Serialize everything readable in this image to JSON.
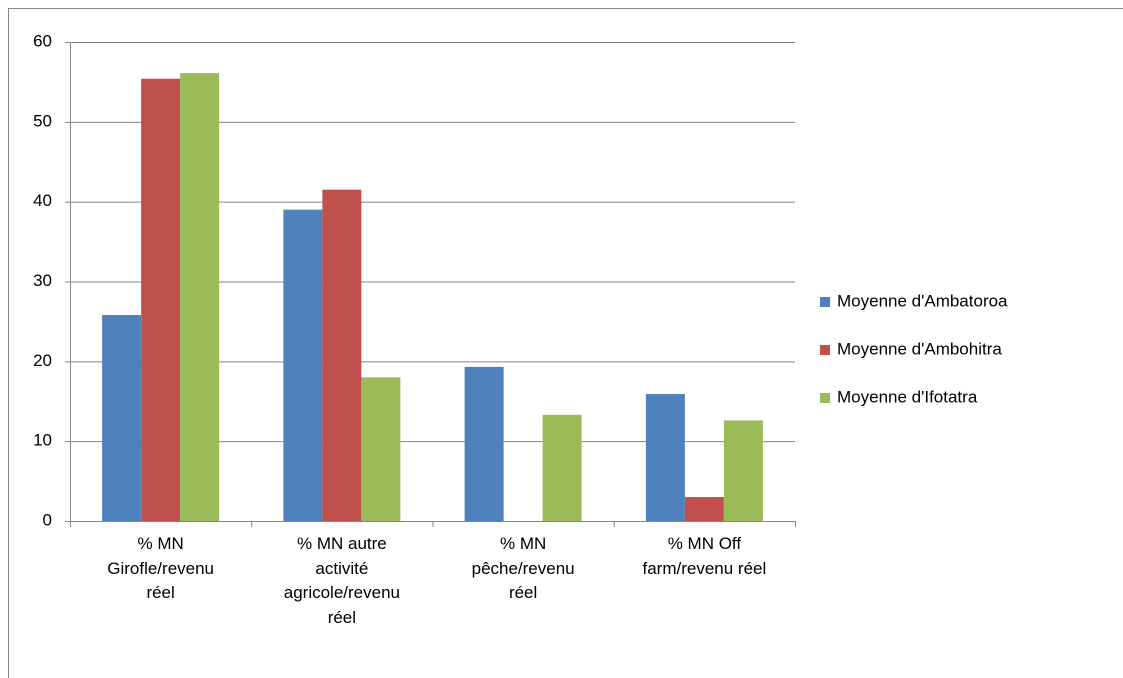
{
  "chart_data": {
    "type": "bar",
    "categories": [
      "% MN Girofle/revenu réel",
      "% MN autre activité agricole/revenu réel",
      "% MN pêche/revenu réel",
      "% MN Off farm/revenu réel"
    ],
    "series": [
      {
        "name": "Moyenne d'Ambatoroa",
        "color": "#4f81bd",
        "values": [
          25.8,
          39,
          19.3,
          15.9
        ]
      },
      {
        "name": "Moyenne d'Ambohitra",
        "color": "#c0504d",
        "values": [
          55.4,
          41.5,
          null,
          3
        ]
      },
      {
        "name": "Moyenne d'Ifotatra",
        "color": "#9bbb59",
        "values": [
          56.1,
          18,
          13.3,
          12.6
        ]
      }
    ],
    "ylim": [
      0,
      60
    ],
    "yticks": [
      0,
      10,
      20,
      30,
      40,
      50,
      60
    ],
    "grid": true,
    "legend": "right"
  }
}
